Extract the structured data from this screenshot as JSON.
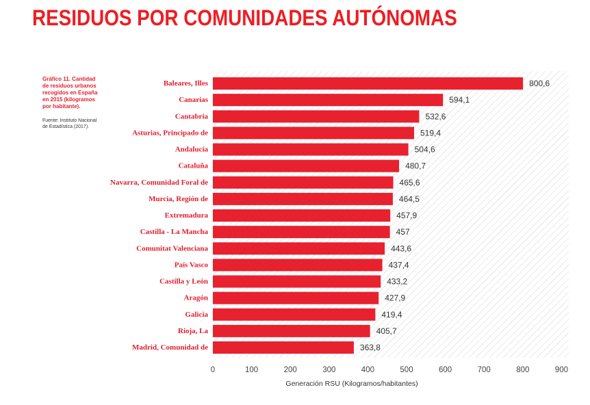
{
  "title": "RESIDUOS POR COMUNIDADES AUTÓNOMAS",
  "note": {
    "caption_lines": [
      "Gráfico 11.  Cantidad",
      "de residuos urbanos",
      "recogidos en España",
      "en 2015 (kilogramos",
      "por habitante)."
    ],
    "source_lines": [
      "Fuente: Instituto Nacional",
      "de Estadística (2017)."
    ]
  },
  "colors": {
    "title": "#ee1d23",
    "bar": "#e8212f",
    "label": "#e0202e",
    "hatch": "#d2d2d2",
    "text": "#333333"
  },
  "chart_data": {
    "type": "bar",
    "orientation": "horizontal",
    "categories": [
      "Baleares, Illes",
      "Canarias",
      "Cantabria",
      "Asturias, Principado de",
      "Andalucía",
      "Cataluña",
      "Navarra, Comunidad Foral de",
      "Murcia, Región de",
      "Extremadura",
      "Castilla - La Mancha",
      "Comunitat Valenciana",
      "País Vasco",
      "Castilla y León",
      "Aragón",
      "Galicia",
      "Rioja, La",
      "Madrid, Comunidad de"
    ],
    "values": [
      800.6,
      594.1,
      532.6,
      519.4,
      504.6,
      480.7,
      465.6,
      464.5,
      457.9,
      457,
      443.6,
      437.4,
      433.2,
      427.9,
      419.4,
      405.7,
      363.8
    ],
    "value_labels": [
      "800,6",
      "594,1",
      "532,6",
      "519,4",
      "504,6",
      "480,7",
      "465,6",
      "464,5",
      "457,9",
      "457",
      "443,6",
      "437,4",
      "433,2",
      "427,9",
      "419,4",
      "405,7",
      "363,8"
    ],
    "xlabel": "Generación RSU (Kilogramos/habitantes)",
    "ylabel": "",
    "xlim": [
      0,
      900
    ],
    "x_ticks": [
      0,
      100,
      200,
      300,
      400,
      500,
      600,
      700,
      800,
      900
    ],
    "grid": false,
    "background": "diagonal-hatch"
  }
}
